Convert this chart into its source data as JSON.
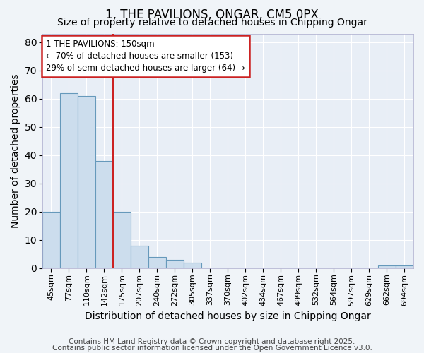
{
  "title1": "1, THE PAVILIONS, ONGAR, CM5 0PX",
  "title2": "Size of property relative to detached houses in Chipping Ongar",
  "xlabel": "Distribution of detached houses by size in Chipping Ongar",
  "ylabel": "Number of detached properties",
  "categories": [
    "45sqm",
    "77sqm",
    "110sqm",
    "142sqm",
    "175sqm",
    "207sqm",
    "240sqm",
    "272sqm",
    "305sqm",
    "337sqm",
    "370sqm",
    "402sqm",
    "434sqm",
    "467sqm",
    "499sqm",
    "532sqm",
    "564sqm",
    "597sqm",
    "629sqm",
    "662sqm",
    "694sqm"
  ],
  "values": [
    20,
    62,
    61,
    38,
    20,
    8,
    4,
    3,
    2,
    0,
    0,
    0,
    0,
    0,
    0,
    0,
    0,
    0,
    0,
    1,
    1
  ],
  "bar_color": "#ccdded",
  "bar_edge_color": "#6699bb",
  "red_line_index": 3,
  "annotation_text": "1 THE PAVILIONS: 150sqm\n← 70% of detached houses are smaller (153)\n29% of semi-detached houses are larger (64) →",
  "annotation_box_color": "#ffffff",
  "annotation_box_edge": "#cc2222",
  "ylim": [
    0,
    83
  ],
  "yticks": [
    0,
    10,
    20,
    30,
    40,
    50,
    60,
    70,
    80
  ],
  "footer1": "Contains HM Land Registry data © Crown copyright and database right 2025.",
  "footer2": "Contains public sector information licensed under the Open Government Licence v3.0.",
  "bg_color": "#f0f4f8",
  "plot_bg_color": "#e8eef6",
  "grid_color": "#ffffff",
  "title_fontsize": 12,
  "subtitle_fontsize": 10,
  "axis_label_fontsize": 10,
  "tick_fontsize": 8,
  "footer_fontsize": 7.5,
  "annotation_fontsize": 8.5
}
